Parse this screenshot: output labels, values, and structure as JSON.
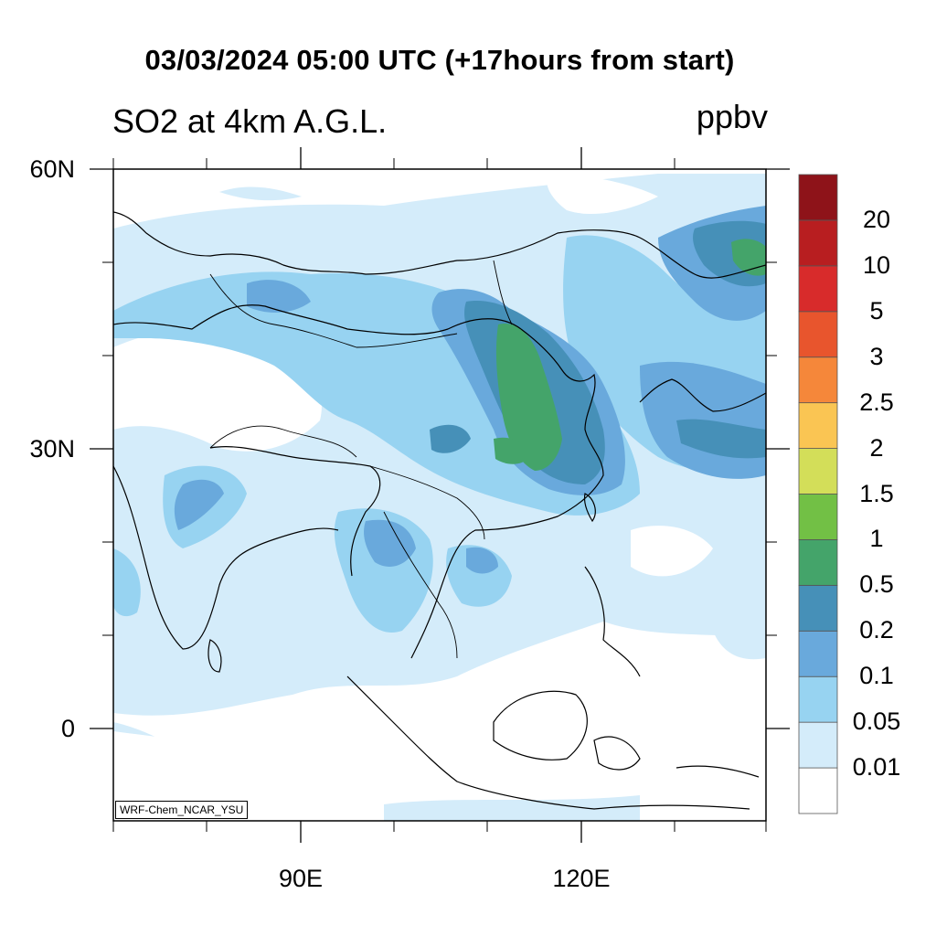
{
  "title": "03/03/2024 05:00 UTC (+17hours from start)",
  "subtitle": "SO2 at 4km A.G.L.",
  "units": "ppbv",
  "credit": "WRF-Chem_NCAR_YSU",
  "lat_labels": [
    "60N",
    "30N",
    "0"
  ],
  "lon_labels": [
    "90E",
    "120E"
  ],
  "legend": {
    "colors": [
      "#ffffff",
      "#d4ecfa",
      "#97d3f1",
      "#69a9dc",
      "#4690b8",
      "#44a46a",
      "#72c045",
      "#d3de59",
      "#fac553",
      "#f5873a",
      "#e8552d",
      "#d82b2b",
      "#b81e20",
      "#8e1319"
    ],
    "labels": [
      "0.01",
      "0.05",
      "0.1",
      "0.2",
      "0.5",
      "1",
      "1.5",
      "2",
      "2.5",
      "3",
      "5",
      "10",
      "20"
    ]
  },
  "map_colors": {
    "very_low": "#d4ecfa",
    "low": "#97d3f1",
    "medium": "#69a9dc",
    "high": "#4690b8",
    "highest": "#44a46a"
  }
}
